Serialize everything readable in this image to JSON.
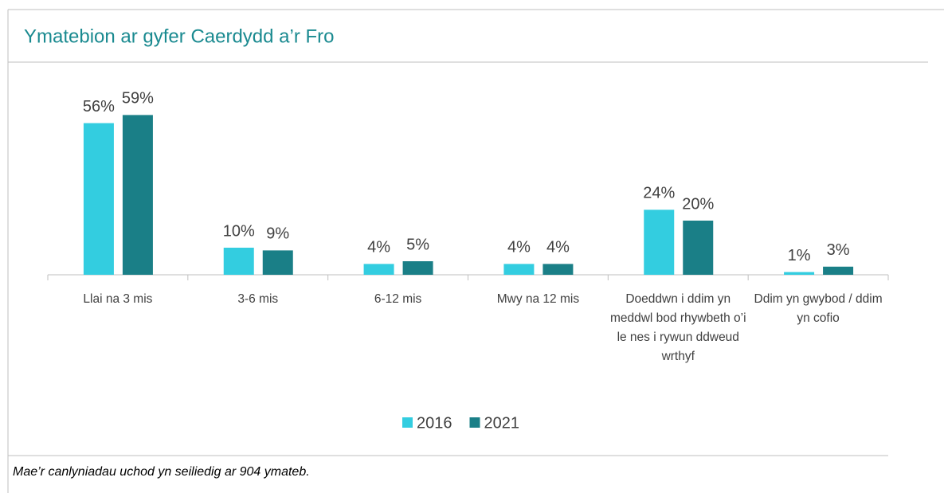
{
  "chart_data": {
    "type": "bar",
    "title": "Ymatebion ar gyfer Caerdydd a’r Fro",
    "categories": [
      "Llai na 3 mis",
      "3-6 mis",
      "6-12 mis",
      "Mwy na 12 mis",
      "Doeddwn i ddim yn meddwl bod rhywbeth o’i le nes i rywun ddweud wrthyf",
      "Ddim yn gwybod / ddim yn cofio"
    ],
    "series": [
      {
        "name": "2016",
        "color": "#33cde0",
        "values": [
          56,
          10,
          4,
          4,
          24,
          1
        ],
        "value_labels": [
          "56%",
          "10%",
          "4%",
          "4%",
          "24%",
          "1%"
        ]
      },
      {
        "name": "2021",
        "color": "#1a7f87",
        "values": [
          59,
          9,
          5,
          4,
          20,
          3
        ],
        "value_labels": [
          "59%",
          "9%",
          "5%",
          "4%",
          "20%",
          "3%"
        ]
      }
    ],
    "ylim": [
      0,
      65
    ],
    "footnote": "Mae’r canlyniadau uchod yn seiliedig ar 904 ymateb."
  }
}
